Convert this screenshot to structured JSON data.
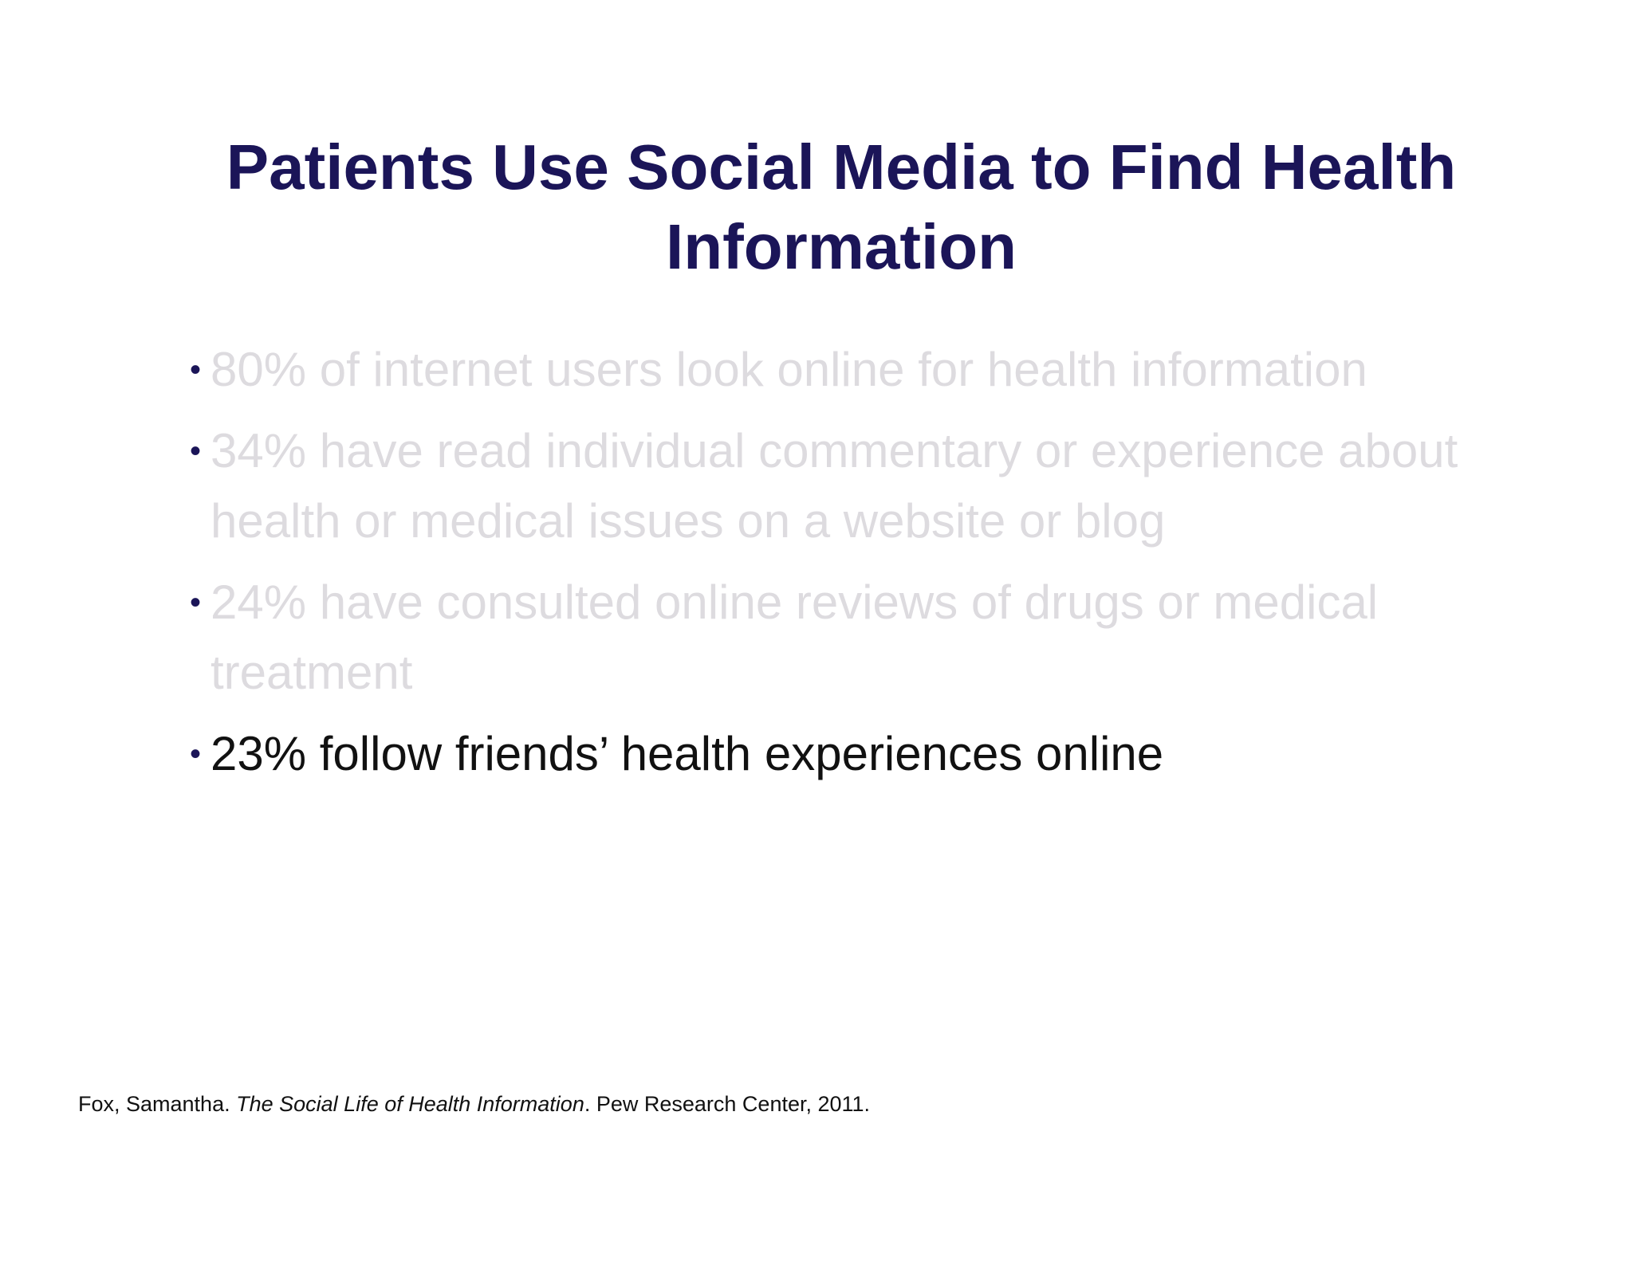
{
  "slide": {
    "title": "Patients Use Social Media to Find Health Information",
    "bullets": [
      {
        "text": "80% of internet users look online for health information",
        "state": "dimmed"
      },
      {
        "text": "34% have read individual commentary or experience about health or medical issues on a website or blog",
        "state": "dimmed"
      },
      {
        "text": "24% have consulted online reviews of drugs or medical treatment",
        "state": "dimmed"
      },
      {
        "text": "23% follow friends’ health experiences online",
        "state": "active"
      }
    ],
    "bullet_glyph": "•",
    "citation": {
      "author": "Fox, Samantha.  ",
      "work": "The Social Life of Health Information",
      "publisher": ". Pew Research Center, 2011."
    }
  },
  "colors": {
    "title": "#1b1558",
    "dimmed_text": "#dddbdf",
    "active_text": "#111111",
    "bullet": "#1b1558"
  }
}
